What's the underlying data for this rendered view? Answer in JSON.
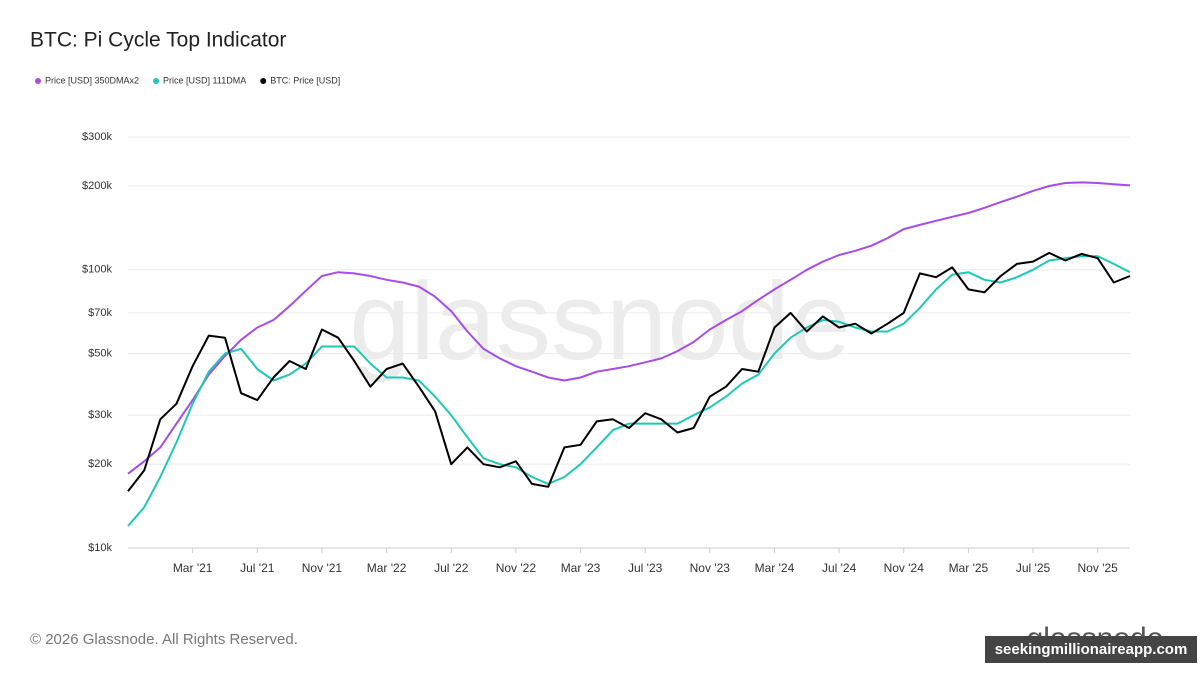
{
  "chart_data": {
    "type": "line",
    "title": "BTC: Pi Cycle Top Indicator",
    "x": [
      "2020-11",
      "2020-12",
      "2021-01",
      "2021-02",
      "2021-03",
      "2021-04",
      "2021-05",
      "2021-06",
      "2021-07",
      "2021-08",
      "2021-09",
      "2021-10",
      "2021-11",
      "2021-12",
      "2022-01",
      "2022-02",
      "2022-03",
      "2022-04",
      "2022-05",
      "2022-06",
      "2022-07",
      "2022-08",
      "2022-09",
      "2022-10",
      "2022-11",
      "2022-12",
      "2023-01",
      "2023-02",
      "2023-03",
      "2023-04",
      "2023-05",
      "2023-06",
      "2023-07",
      "2023-08",
      "2023-09",
      "2023-10",
      "2023-11",
      "2023-12",
      "2024-01",
      "2024-02",
      "2024-03",
      "2024-04",
      "2024-05",
      "2024-06",
      "2024-07",
      "2024-08",
      "2024-09",
      "2024-10",
      "2024-11",
      "2024-12",
      "2025-01",
      "2025-02",
      "2025-03",
      "2025-04",
      "2025-05",
      "2025-06",
      "2025-07",
      "2025-08",
      "2025-09",
      "2025-10",
      "2025-11",
      "2025-12",
      "2026-01"
    ],
    "series": [
      {
        "name": "Price [USD] 350DMAx2",
        "color": "#a64ce8",
        "values": [
          18500,
          20500,
          23000,
          28000,
          34000,
          42000,
          49000,
          56000,
          62000,
          66000,
          74000,
          84000,
          95000,
          98000,
          97000,
          95000,
          92000,
          90000,
          87000,
          80000,
          71000,
          60000,
          52000,
          48000,
          45000,
          43000,
          41000,
          40000,
          41000,
          43000,
          44000,
          45000,
          46500,
          48000,
          51000,
          55000,
          61000,
          66000,
          71000,
          78000,
          85000,
          92000,
          100000,
          107000,
          113000,
          117000,
          122000,
          130000,
          140000,
          145000,
          150000,
          155000,
          160000,
          167000,
          175000,
          183000,
          192000,
          200000,
          205000,
          206000,
          205000,
          203000,
          201000
        ]
      },
      {
        "name": "Price [USD] 111DMA",
        "color": "#1ec8b4",
        "values": [
          12000,
          14000,
          18000,
          24000,
          33000,
          43000,
          50000,
          52000,
          44000,
          40000,
          42000,
          46000,
          53000,
          53000,
          53000,
          46000,
          41000,
          41000,
          40000,
          35000,
          30000,
          25000,
          21000,
          20000,
          19500,
          18000,
          17000,
          18000,
          20000,
          23000,
          26500,
          28000,
          28000,
          28000,
          28000,
          30000,
          32000,
          35000,
          39000,
          42000,
          50000,
          57000,
          62000,
          66000,
          65000,
          62000,
          60000,
          60000,
          64000,
          73000,
          85000,
          96000,
          98000,
          92000,
          90000,
          94000,
          100000,
          108000,
          110000,
          112000,
          112000,
          105000,
          98000
        ]
      },
      {
        "name": "BTC: Price [USD]",
        "color": "#000000",
        "values": [
          16000,
          19000,
          29000,
          33000,
          45000,
          58000,
          57000,
          36000,
          34000,
          41000,
          47000,
          44000,
          61000,
          57000,
          47000,
          38000,
          44000,
          46000,
          38000,
          31000,
          20000,
          23000,
          20000,
          19500,
          20500,
          17000,
          16600,
          23000,
          23500,
          28500,
          29000,
          27000,
          30500,
          29000,
          26000,
          27000,
          35000,
          38000,
          44000,
          43000,
          62000,
          70000,
          60000,
          68000,
          62000,
          64000,
          59000,
          64000,
          70000,
          97000,
          94000,
          102000,
          85000,
          83000,
          95000,
          105000,
          107000,
          115000,
          108000,
          114000,
          110000,
          90000,
          95000
        ]
      }
    ],
    "xlim": [
      "2020-11",
      "2026-01"
    ],
    "xticks": [
      {
        "value": "2021-03",
        "label": "Mar '21"
      },
      {
        "value": "2021-07",
        "label": "Jul '21"
      },
      {
        "value": "2021-11",
        "label": "Nov '21"
      },
      {
        "value": "2022-03",
        "label": "Mar '22"
      },
      {
        "value": "2022-07",
        "label": "Jul '22"
      },
      {
        "value": "2022-11",
        "label": "Nov '22"
      },
      {
        "value": "2023-03",
        "label": "Mar '23"
      },
      {
        "value": "2023-07",
        "label": "Jul '23"
      },
      {
        "value": "2023-11",
        "label": "Nov '23"
      },
      {
        "value": "2024-03",
        "label": "Mar '24"
      },
      {
        "value": "2024-07",
        "label": "Jul '24"
      },
      {
        "value": "2024-11",
        "label": "Nov '24"
      },
      {
        "value": "2025-03",
        "label": "Mar '25"
      },
      {
        "value": "2025-07",
        "label": "Jul '25"
      },
      {
        "value": "2025-11",
        "label": "Nov '25"
      }
    ],
    "ylim": [
      10000,
      300000
    ],
    "log_scale": true,
    "grid": true,
    "yticks": [
      {
        "value": 10000,
        "label": "$10k"
      },
      {
        "value": 20000,
        "label": "$20k"
      },
      {
        "value": 30000,
        "label": "$30k"
      },
      {
        "value": 50000,
        "label": "$50k"
      },
      {
        "value": 70000,
        "label": "$70k"
      },
      {
        "value": 100000,
        "label": "$100k"
      },
      {
        "value": 200000,
        "label": "$200k"
      },
      {
        "value": 300000,
        "label": "$300k"
      }
    ],
    "legend": "top-left"
  },
  "footer": "© 2026 Glassnode. All Rights Reserved.",
  "watermark": "glassnode",
  "source_badge": "seekingmillionaireapp.com"
}
